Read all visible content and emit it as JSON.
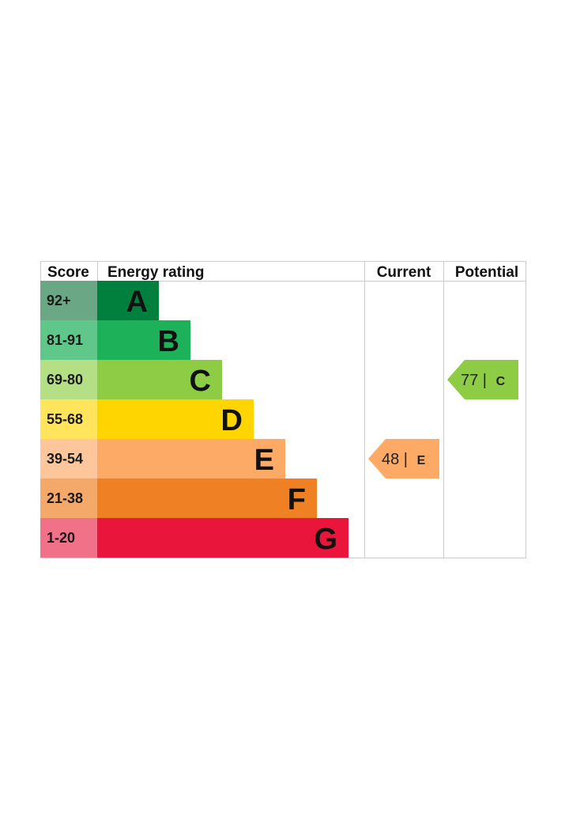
{
  "chart_data": {
    "type": "bar",
    "headers": {
      "score": "Score",
      "rating": "Energy rating",
      "current": "Current",
      "potential": "Potential"
    },
    "bands": [
      {
        "score": "92+",
        "letter": "A",
        "color": "#007f3d",
        "score_color": "#6aa885"
      },
      {
        "score": "81-91",
        "letter": "B",
        "color": "#1db25a",
        "score_color": "#5fc789"
      },
      {
        "score": "69-80",
        "letter": "C",
        "color": "#8dcc44",
        "score_color": "#b4df85"
      },
      {
        "score": "55-68",
        "letter": "D",
        "color": "#ffd500",
        "score_color": "#ffe45c"
      },
      {
        "score": "39-54",
        "letter": "E",
        "color": "#fcaa65",
        "score_color": "#fdc79b"
      },
      {
        "score": "21-38",
        "letter": "F",
        "color": "#ef8023",
        "score_color": "#f4a96a"
      },
      {
        "score": "1-20",
        "letter": "G",
        "color": "#e9153b",
        "score_color": "#f17188"
      }
    ],
    "current": {
      "value": "48",
      "separator": "|",
      "letter": "E",
      "color": "#fcaa65"
    },
    "potential": {
      "value": "77",
      "separator": "|",
      "letter": "C",
      "color": "#8dcc44"
    }
  }
}
